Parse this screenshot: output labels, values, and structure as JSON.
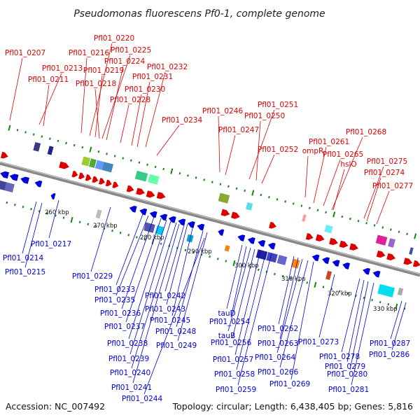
{
  "title": "Pseudomonas fluorescens Pf0-1, complete genome",
  "footer": {
    "accession": "Accession: NC_007492",
    "summary": "Topology: circular; Length: 6,438,405 bp; Genes: 5,816"
  },
  "colors": {
    "forward": "#dd0000",
    "reverse": "#0000dd",
    "backbone": "#888888",
    "dots": "#118811"
  },
  "scale": [
    "260 kbp",
    "270 kbp",
    "280 kbp",
    "290 kbp",
    "300 kbp",
    "310 kbp",
    "320 kbp",
    "330 kbp"
  ],
  "top_labels": [
    "Pfl01_0207",
    "Pfl01_0213",
    "Pfl01_0211",
    "Pfl01_0216",
    "Pfl01_0220",
    "Pfl01_0225",
    "Pfl01_0219",
    "Pfl01_0224",
    "Pfl01_0218",
    "Pfl01_0232",
    "Pfl01_0231",
    "Pfl01_0230",
    "Pfl01_0228",
    "Pfl01_0234",
    "Pfl01_0246",
    "Pfl01_0251",
    "Pfl01_0250",
    "Pfl01_0247",
    "Pfl01_0252",
    "ompR",
    "Pfl01_0261",
    "Pfl01_0268",
    "Pfl01_0265",
    "hslO",
    "Pfl01_0275",
    "Pfl01_0274",
    "Pfl01_0277"
  ],
  "bottom_labels": [
    "Pfl01_0217",
    "Pfl01_0214",
    "Pfl01_0215",
    "Pfl01_0229",
    "Pfl01_0233",
    "Pfl01_0235",
    "Pfl01_0236",
    "Pfl01_0242",
    "Pfl01_0243",
    "Pfl01_0237",
    "Pfl01_0245",
    "Pfl01_0248",
    "Pfl01_0238",
    "Pfl01_0249",
    "Pfl01_0239",
    "Pfl01_0240",
    "Pfl01_0241",
    "Pfl01_0244",
    "tauD",
    "Pfl01_0254",
    "tauB",
    "Pfl01_0256",
    "Pfl01_0257",
    "Pfl01_0258",
    "Pfl01_0259",
    "Pfl01_0262",
    "Pfl01_0263",
    "Pfl01_0264",
    "Pfl01_0266",
    "Pfl01_0269",
    "Pfl01_0273",
    "Pfl01_0278",
    "Pfl01_0279",
    "Pfl01_0280",
    "Pfl01_0281",
    "Pfl01_0287",
    "Pfl01_0286"
  ]
}
